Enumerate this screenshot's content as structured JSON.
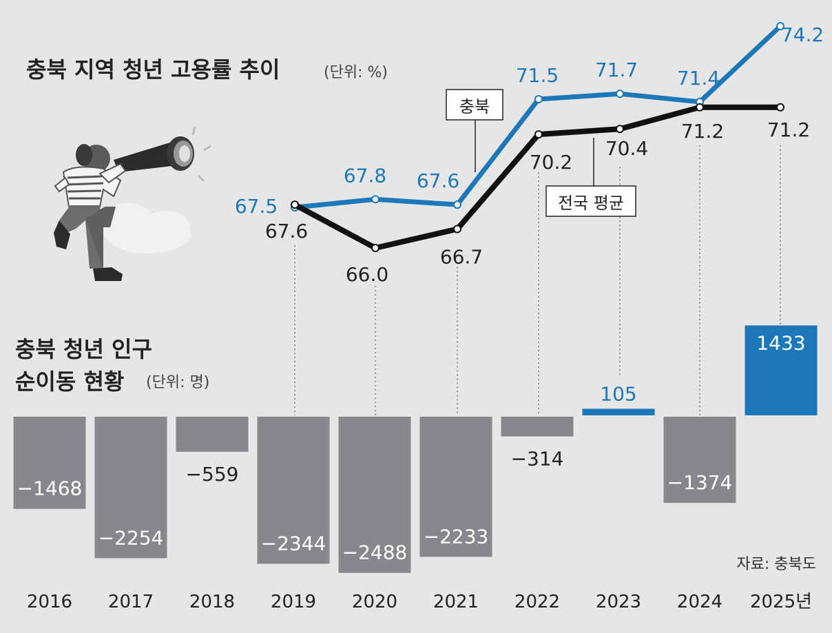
{
  "chart_data": [
    {
      "type": "line",
      "title": "충북 지역 청년 고용률 추이",
      "unit": "(단위: %)",
      "x": [
        "2019",
        "2020",
        "2021",
        "2022",
        "2023",
        "2024",
        "2025년"
      ],
      "series": [
        {
          "name": "충북",
          "color": "#1c78b8",
          "values": [
            67.5,
            67.8,
            67.6,
            71.5,
            71.7,
            71.4,
            74.2
          ],
          "labels": [
            "67.5",
            "67.8",
            "67.6",
            "71.5",
            "71.7",
            "71.4",
            "74.2"
          ]
        },
        {
          "name": "전국 평균",
          "color": "#111111",
          "values": [
            67.6,
            66.0,
            66.7,
            70.2,
            70.4,
            71.2,
            71.2
          ],
          "labels": [
            "67.6",
            "66.0",
            "66.7",
            "70.2",
            "70.4",
            "71.2",
            "71.2"
          ]
        }
      ],
      "ylim": [
        66.0,
        74.2
      ]
    },
    {
      "type": "bar",
      "title_line1": "충북 청년 인구",
      "title_line2": "순이동 현황",
      "unit": "(단위: 명)",
      "categories": [
        "2016",
        "2017",
        "2018",
        "2019",
        "2020",
        "2021",
        "2022",
        "2023",
        "2024",
        "2025년"
      ],
      "values": [
        -1468,
        -2254,
        -559,
        -2344,
        -2488,
        -2233,
        -314,
        105,
        -1374,
        1433
      ],
      "labels": [
        "−1468",
        "−2254",
        "−559",
        "−2344",
        "−2488",
        "−2233",
        "−314",
        "105",
        "−1374",
        "1433"
      ],
      "colors": {
        "negative": "#87888b",
        "positive": "#1c78b8"
      }
    }
  ],
  "source": "자료: 충북도",
  "icon": "person-with-telescope-illustration"
}
